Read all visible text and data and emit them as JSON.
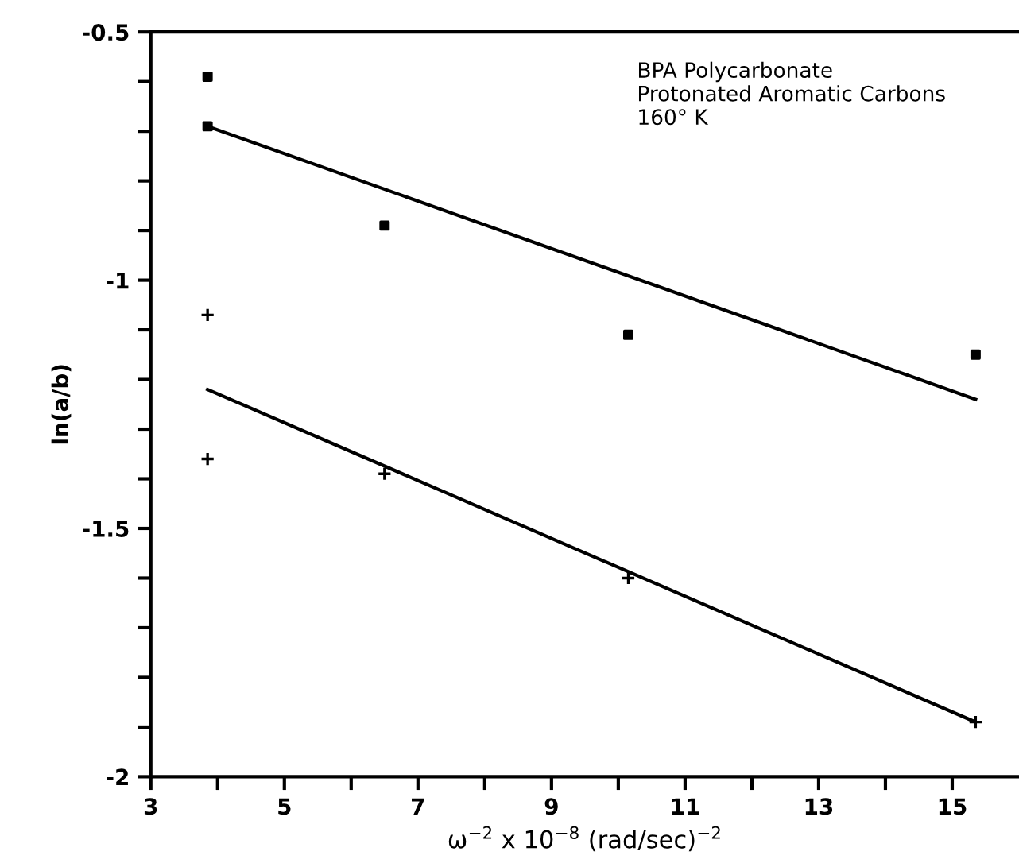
{
  "chart_data": {
    "type": "scatter",
    "xlabel": "ω$^{−2}$ x 10$^{−8}$ (rad/sec)$^{−2}$",
    "ylabel": "ln(a/b)",
    "annotations": [
      "BPA Polycarbonate\nProtonated Aromatic Carbons\n160° K"
    ],
    "xlim": [
      3,
      16
    ],
    "ylim": [
      -2,
      -0.5
    ],
    "xticks": [
      3,
      {
        "value": 4,
        "label": null
      },
      5,
      {
        "value": 6,
        "label": null
      },
      7,
      {
        "value": 8,
        "label": null
      },
      9,
      {
        "value": 10,
        "label": null
      },
      11,
      {
        "value": 12,
        "label": null
      },
      13,
      {
        "value": 14,
        "label": null
      },
      15
    ],
    "yticks": [
      -2,
      {
        "value": -1.9,
        "label": null
      },
      {
        "value": -1.8,
        "label": null
      },
      {
        "value": -1.7,
        "label": null
      },
      {
        "value": -1.6,
        "label": null
      },
      -1.5,
      {
        "value": -1.4,
        "label": null
      },
      {
        "value": -1.3,
        "label": null
      },
      {
        "value": -1.2,
        "label": null
      },
      {
        "value": -1.1,
        "label": null
      },
      -1,
      {
        "value": -0.9,
        "label": null
      },
      {
        "value": -0.8,
        "label": null
      },
      {
        "value": -0.7,
        "label": null
      },
      {
        "value": -0.6,
        "label": null
      },
      -0.5
    ],
    "grid": false,
    "series": [
      {
        "marker": "square",
        "color": "#000000",
        "x": [
          3.85,
          3.85,
          6.5,
          10.15,
          15.35
        ],
        "values": [
          -0.59,
          -0.69,
          -0.89,
          -1.11,
          -1.15
        ]
      },
      {
        "marker": "cross",
        "color": "#000000",
        "x": [
          3.85,
          3.85,
          6.5,
          10.15,
          15.35
        ],
        "values": [
          -1.07,
          -1.36,
          -1.39,
          -1.6,
          -1.89
        ]
      },
      {
        "type": "line",
        "marker": "none",
        "line_style": "solid",
        "color": "#000000",
        "x": [
          3.85,
          15.35
        ],
        "values": [
          -0.69,
          -1.24
        ]
      },
      {
        "type": "line",
        "marker": "none",
        "line_style": "solid",
        "color": "#000000",
        "x": [
          3.85,
          15.35
        ],
        "values": [
          -1.22,
          -1.89
        ]
      }
    ]
  }
}
